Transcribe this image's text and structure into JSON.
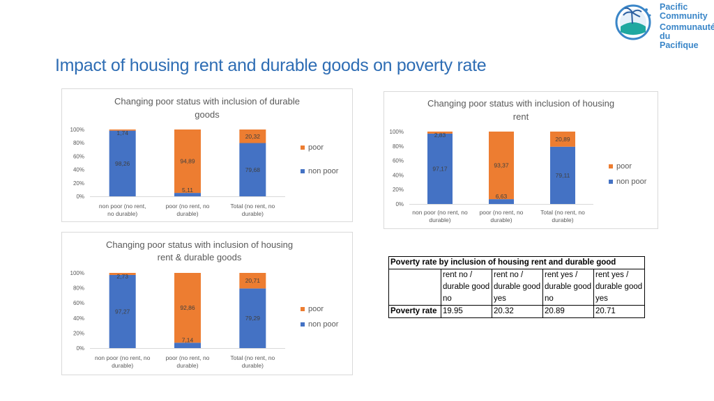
{
  "page": {
    "title": "Impact of housing rent and durable goods on poverty rate",
    "logo": {
      "line1": "Pacific",
      "line2": "Community",
      "line3": "Communauté",
      "line4": "du Pacifique"
    }
  },
  "colors": {
    "poor": "#ed7d31",
    "non_poor": "#4472c4",
    "title": "#2e6db4"
  },
  "chart_data": [
    {
      "id": "durable",
      "type": "bar",
      "stacked": true,
      "title_lines": [
        "Changing poor status with inclusion of durable",
        "goods"
      ],
      "categories": [
        [
          "non poor (no rent,",
          "no durable)"
        ],
        [
          "poor (no rent, no",
          "durable)"
        ],
        [
          "Total (no rent, no",
          "durable)"
        ]
      ],
      "series": [
        {
          "name": "non poor",
          "values": [
            98.26,
            5.11,
            79.68
          ],
          "labels": [
            "98,26",
            "5,11",
            "79,68"
          ]
        },
        {
          "name": "poor",
          "values": [
            1.74,
            94.89,
            20.32
          ],
          "labels": [
            "1,74",
            "94,89",
            "20,32"
          ]
        }
      ],
      "ylim": [
        0,
        100
      ],
      "yticks": [
        "0%",
        "20%",
        "40%",
        "60%",
        "80%",
        "100%"
      ],
      "legend": [
        "poor",
        "non poor"
      ],
      "legend_position": "right"
    },
    {
      "id": "rent",
      "type": "bar",
      "stacked": true,
      "title_lines": [
        "Changing poor status with inclusion of housing",
        "rent"
      ],
      "categories": [
        [
          "non poor (no rent, no",
          "durable)"
        ],
        [
          "poor (no rent, no",
          "durable)"
        ],
        [
          "Total (no rent, no",
          "durable)"
        ]
      ],
      "series": [
        {
          "name": "non poor",
          "values": [
            97.17,
            6.63,
            79.11
          ],
          "labels": [
            "97,17",
            "6,63",
            "79,11"
          ]
        },
        {
          "name": "poor",
          "values": [
            2.83,
            93.37,
            20.89
          ],
          "labels": [
            "2,83",
            "93,37",
            "20,89"
          ]
        }
      ],
      "ylim": [
        0,
        100
      ],
      "yticks": [
        "0%",
        "20%",
        "40%",
        "60%",
        "80%",
        "100%"
      ],
      "legend": [
        "poor",
        "non poor"
      ],
      "legend_position": "right"
    },
    {
      "id": "both",
      "type": "bar",
      "stacked": true,
      "title_lines": [
        "Changing poor status with inclusion of housing",
        "rent & durable goods"
      ],
      "categories": [
        [
          "non poor (no rent, no",
          "durable)"
        ],
        [
          "poor (no rent, no",
          "durable)"
        ],
        [
          "Total (no rent, no",
          "durable)"
        ]
      ],
      "series": [
        {
          "name": "non poor",
          "values": [
            97.27,
            7.14,
            79.29
          ],
          "labels": [
            "97,27",
            "7,14",
            "79,29"
          ]
        },
        {
          "name": "poor",
          "values": [
            2.73,
            92.86,
            20.71
          ],
          "labels": [
            "2,73",
            "92,86",
            "20,71"
          ]
        }
      ],
      "ylim": [
        0,
        100
      ],
      "yticks": [
        "0%",
        "20%",
        "40%",
        "60%",
        "80%",
        "100%"
      ],
      "legend": [
        "poor",
        "non poor"
      ],
      "legend_position": "right"
    }
  ],
  "table": {
    "caption": "Poverty rate by inclusion of housing rent and durable good",
    "headers": [
      [
        "rent no /",
        "durable good",
        "no"
      ],
      [
        "rent no /",
        "durable good",
        "yes"
      ],
      [
        "rent yes /",
        "durable good",
        "no"
      ],
      [
        "rent yes /",
        "durable good",
        "yes"
      ]
    ],
    "row_label": "Poverty rate",
    "values": [
      "19.95",
      "20.32",
      "20.89",
      "20.71"
    ]
  }
}
